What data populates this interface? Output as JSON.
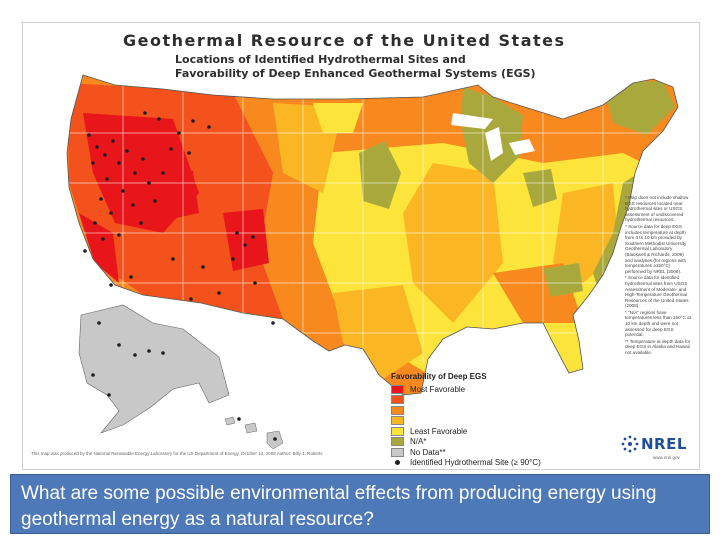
{
  "map": {
    "title": "Geothermal Resource of the United States",
    "subtitle_1": "Locations of Identified Hydrothermal Sites and",
    "subtitle_2": "Favorability of Deep Enhanced Geothermal Systems (EGS)",
    "notes": [
      "* Map does not include shallow EGS resources located near hydrothermal sites or USGS assessment of undiscovered hydrothermal resources.",
      "* Source data for deep EGS includes temperature at depth from 3 to 10 km provided by Southern Methodist University Geothermal Laboratory (Blackwell & Richards, 2009) and analyses (for regions with temperatures ≥150°C) performed by NREL (2009).",
      "* Source data for identified hydrothermal sites from USGS Assessment of Moderate- and High-Temperature Geothermal Resources of the United States (2008).",
      "* \"N/A\" regions have temperatures less than 150°C at 10 km depth and were not assessed for deep EGS potential.",
      "** Temperature at depth data for deep EGS in Alaska and Hawaii not available."
    ],
    "credit": "This map was produced by the National Renewable Energy Laboratory for the US Department of Energy. October 13, 2009 Author: Billy J. Roberts",
    "logo_text": "NREL",
    "logo_url": "www.nrel.gov"
  },
  "legend": {
    "title": "Favorability of Deep EGS",
    "items": [
      {
        "label": "Most Favorable",
        "color": "#e8161b"
      },
      {
        "label": "",
        "color": "#f4521c"
      },
      {
        "label": "",
        "color": "#f8891f"
      },
      {
        "label": "",
        "color": "#fbb723"
      },
      {
        "label": "Least Favorable",
        "color": "#fde43a"
      },
      {
        "label": "N/A*",
        "color": "#a8a83c"
      },
      {
        "label": "No Data**",
        "color": "#c8c8c8"
      }
    ],
    "site_label": "Identified Hydrothermal Site (≥ 90°C)"
  },
  "question": "What are some possible environmental effects from producing energy using geothermal energy as a natural resource?"
}
